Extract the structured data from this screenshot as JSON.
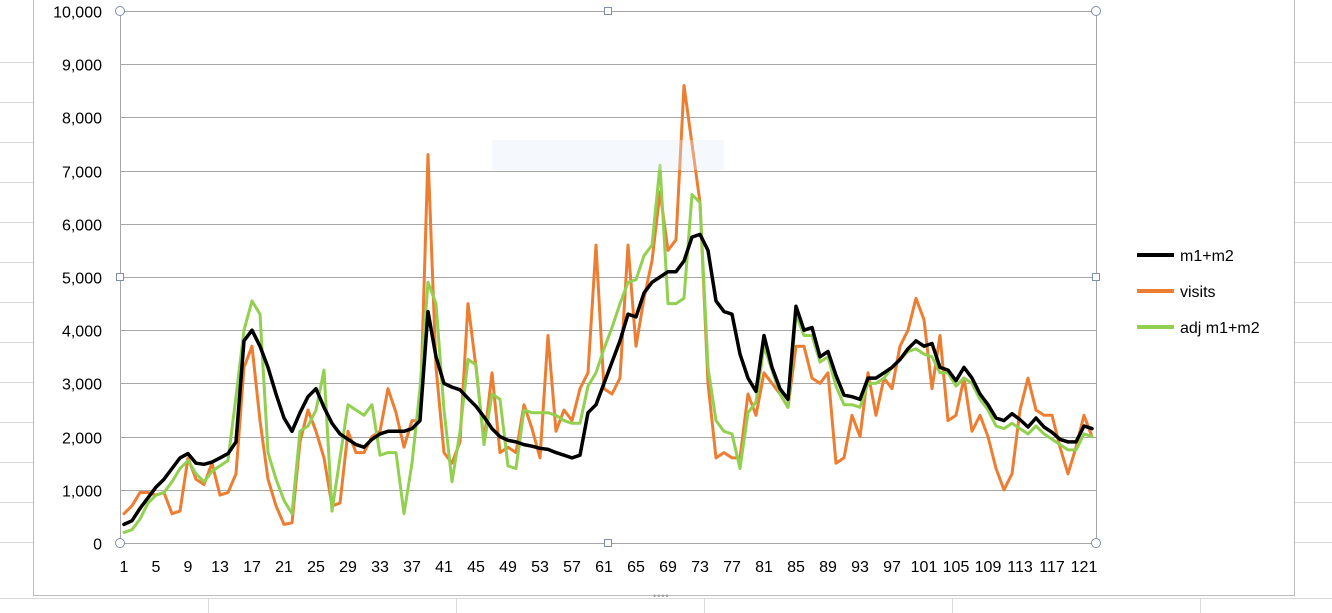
{
  "chart_data": {
    "type": "line",
    "ylim": [
      0,
      10000
    ],
    "y_ticks": [
      "0",
      "1,000",
      "2,000",
      "3,000",
      "4,000",
      "5,000",
      "6,000",
      "7,000",
      "8,000",
      "9,000",
      "10,000"
    ],
    "x_ticks": [
      "1",
      "5",
      "9",
      "13",
      "17",
      "21",
      "25",
      "29",
      "33",
      "37",
      "41",
      "45",
      "49",
      "53",
      "57",
      "61",
      "65",
      "69",
      "73",
      "77",
      "81",
      "85",
      "89",
      "93",
      "97",
      "101",
      "105",
      "109",
      "113",
      "117",
      "121"
    ],
    "grid": "horizontal",
    "legend_position": "right",
    "x": [
      1,
      2,
      3,
      4,
      5,
      6,
      7,
      8,
      9,
      10,
      11,
      12,
      13,
      14,
      15,
      16,
      17,
      18,
      19,
      20,
      21,
      22,
      23,
      24,
      25,
      26,
      27,
      28,
      29,
      30,
      31,
      32,
      33,
      34,
      35,
      36,
      37,
      38,
      39,
      40,
      41,
      42,
      43,
      44,
      45,
      46,
      47,
      48,
      49,
      50,
      51,
      52,
      53,
      54,
      55,
      56,
      57,
      58,
      59,
      60,
      61,
      62,
      63,
      64,
      65,
      66,
      67,
      68,
      69,
      70,
      71,
      72,
      73,
      74,
      75,
      76,
      77,
      78,
      79,
      80,
      81,
      82,
      83,
      84,
      85,
      86,
      87,
      88,
      89,
      90,
      91,
      92,
      93,
      94,
      95,
      96,
      97,
      98,
      99,
      100,
      101,
      102,
      103,
      104,
      105,
      106,
      107,
      108,
      109,
      110,
      111,
      112,
      113,
      114,
      115,
      116,
      117,
      118,
      119,
      120,
      121,
      122
    ],
    "series": [
      {
        "name": "m1+m2",
        "color": "#000000",
        "values": [
          350,
          420,
          650,
          850,
          1050,
          1200,
          1400,
          1600,
          1680,
          1500,
          1480,
          1520,
          1600,
          1680,
          1900,
          3800,
          4000,
          3700,
          3300,
          2800,
          2350,
          2100,
          2450,
          2750,
          2900,
          2550,
          2250,
          2050,
          1950,
          1850,
          1800,
          1950,
          2050,
          2100,
          2100,
          2100,
          2150,
          2300,
          4350,
          3500,
          3000,
          2930,
          2880,
          2720,
          2570,
          2370,
          2150,
          2000,
          1930,
          1900,
          1850,
          1820,
          1780,
          1760,
          1700,
          1650,
          1600,
          1650,
          2450,
          2600,
          3000,
          3400,
          3800,
          4300,
          4250,
          4700,
          4900,
          5000,
          5100,
          5100,
          5300,
          5750,
          5800,
          5500,
          4550,
          4350,
          4300,
          3550,
          3100,
          2850,
          3900,
          3300,
          2900,
          2700,
          4450,
          4000,
          4050,
          3500,
          3600,
          3150,
          2780,
          2750,
          2700,
          3100,
          3100,
          3200,
          3300,
          3450,
          3650,
          3800,
          3700,
          3750,
          3300,
          3250,
          3050,
          3300,
          3100,
          2800,
          2600,
          2350,
          2300,
          2430,
          2320,
          2180,
          2350,
          2180,
          2080,
          1950,
          1900,
          1900,
          2200,
          2150
        ]
      },
      {
        "name": "visits",
        "color": "#ED7D31",
        "values": [
          550,
          700,
          950,
          950,
          900,
          950,
          550,
          600,
          1600,
          1200,
          1100,
          1500,
          900,
          950,
          1300,
          3300,
          3700,
          2300,
          1200,
          700,
          350,
          380,
          1900,
          2500,
          2100,
          1600,
          700,
          750,
          2100,
          1700,
          1700,
          2000,
          2100,
          2900,
          2450,
          1800,
          2300,
          2300,
          7300,
          3300,
          1700,
          1500,
          1900,
          4500,
          3300,
          1900,
          3200,
          1700,
          1800,
          1700,
          2600,
          2150,
          1600,
          3900,
          2100,
          2500,
          2300,
          2900,
          3200,
          5600,
          2900,
          2800,
          3100,
          5600,
          3700,
          4600,
          5300,
          6600,
          5500,
          5700,
          8600,
          7500,
          6400,
          3000,
          1600,
          1700,
          1600,
          1600,
          2800,
          2400,
          3200,
          3000,
          2800,
          2550,
          3700,
          3700,
          3100,
          3000,
          3200,
          1500,
          1600,
          2400,
          2000,
          3200,
          2400,
          3100,
          2900,
          3700,
          4000,
          4600,
          4200,
          2900,
          3900,
          2300,
          2400,
          3100,
          2100,
          2400,
          2000,
          1400,
          1000,
          1300,
          2500,
          3100,
          2500,
          2400,
          2400,
          1800,
          1300,
          1800,
          2400,
          2000
        ]
      },
      {
        "name": "adj m1+m2",
        "color": "#92D050",
        "values": [
          200,
          250,
          450,
          750,
          900,
          950,
          1150,
          1400,
          1550,
          1300,
          1150,
          1350,
          1450,
          1550,
          2750,
          4000,
          4550,
          4300,
          1700,
          1200,
          800,
          550,
          2100,
          2200,
          2500,
          3250,
          600,
          1600,
          2600,
          2500,
          2400,
          2600,
          1650,
          1700,
          1700,
          550,
          1500,
          2900,
          4900,
          4500,
          2500,
          1150,
          2100,
          3450,
          3350,
          1850,
          2800,
          2700,
          1450,
          1400,
          2500,
          2450,
          2450,
          2450,
          2400,
          2300,
          2250,
          2250,
          2950,
          3200,
          3650,
          4050,
          4500,
          4900,
          4950,
          5400,
          5600,
          7100,
          4500,
          4500,
          4600,
          6550,
          6400,
          3300,
          2300,
          2100,
          2050,
          1400,
          2450,
          2650,
          3700,
          3250,
          2800,
          2550,
          4300,
          3900,
          3900,
          3400,
          3500,
          2950,
          2600,
          2600,
          2550,
          3000,
          3000,
          3100,
          3300,
          3450,
          3600,
          3650,
          3550,
          3500,
          3200,
          3200,
          2950,
          3100,
          3000,
          2700,
          2500,
          2200,
          2150,
          2250,
          2150,
          2050,
          2200,
          2050,
          1950,
          1850,
          1750,
          1750,
          2050,
          2000
        ]
      }
    ]
  }
}
